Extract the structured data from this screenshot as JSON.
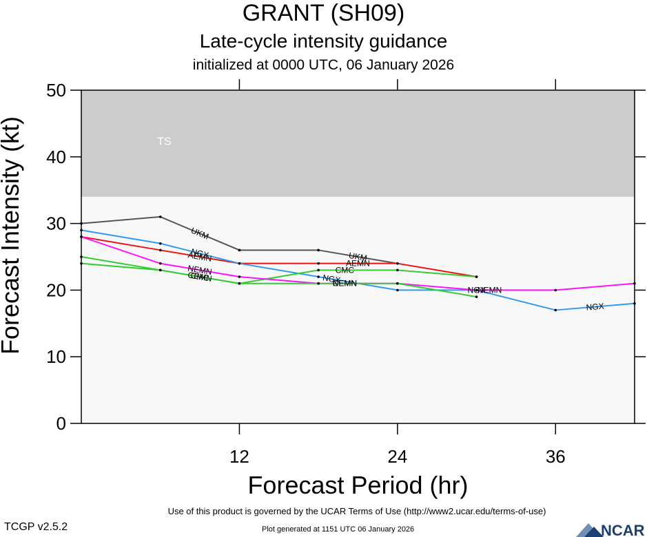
{
  "header": {
    "title": "GRANT (SH09)",
    "subtitle": "Late-cycle intensity guidance",
    "initialized": "initialized at 0000 UTC, 06 January 2026"
  },
  "footer": {
    "terms": "Use of this product is governed by the UCAR Terms of Use (http://www2.ucar.edu/terms-of-use)",
    "version": "TCGP v2.5.2",
    "generated": "Plot generated at 1151 UTC   06 January 2026",
    "logo_text": "NCAR"
  },
  "chart_data": {
    "type": "line",
    "xlabel": "Forecast Period (hr)",
    "ylabel": "Forecast Intensity (kt)",
    "xlim": [
      0,
      42
    ],
    "ylim": [
      0,
      50
    ],
    "xticks": [
      12,
      24,
      36
    ],
    "yticks": [
      0,
      10,
      20,
      30,
      40,
      50
    ],
    "bands": [
      {
        "label": "TS",
        "from": 34,
        "to": 50,
        "color": "#cccccc"
      }
    ],
    "plot_background": "#f8f8f8",
    "series": [
      {
        "name": "UKM",
        "color": "#555555",
        "x": [
          0,
          6,
          12,
          18,
          24
        ],
        "y": [
          30,
          31,
          26,
          26,
          24
        ],
        "labels_at": [
          9,
          21
        ]
      },
      {
        "name": "AEMN",
        "color": "#ee1111",
        "x": [
          0,
          6,
          12,
          18,
          24,
          30
        ],
        "y": [
          28,
          26,
          24,
          24,
          24,
          22
        ],
        "labels_at": [
          9,
          21
        ]
      },
      {
        "name": "NGX",
        "color": "#3399ee",
        "x": [
          0,
          6,
          12,
          18,
          24,
          30,
          36,
          42
        ],
        "y": [
          29,
          27,
          24,
          22,
          20,
          20,
          17,
          18
        ],
        "labels_at": [
          9,
          19,
          30,
          39
        ]
      },
      {
        "name": "CMC",
        "color": "#33cc33",
        "x": [
          0,
          6,
          12,
          18,
          24,
          30
        ],
        "y": [
          25,
          23,
          21,
          23,
          23,
          22
        ],
        "labels_at": [
          9,
          20
        ]
      },
      {
        "name": "NEMN",
        "color": "#ff11ff",
        "x": [
          0,
          6,
          12,
          18,
          24,
          30,
          36,
          42
        ],
        "y": [
          28,
          24,
          22,
          21,
          21,
          20,
          20,
          21
        ],
        "labels_at": [
          9,
          20,
          31
        ]
      },
      {
        "name": "CEMN",
        "color": "#33cc33",
        "x": [
          0,
          6,
          12,
          18,
          24,
          30
        ],
        "y": [
          24,
          23,
          21,
          21,
          21,
          19
        ],
        "labels_at": [
          9,
          20
        ]
      }
    ]
  }
}
